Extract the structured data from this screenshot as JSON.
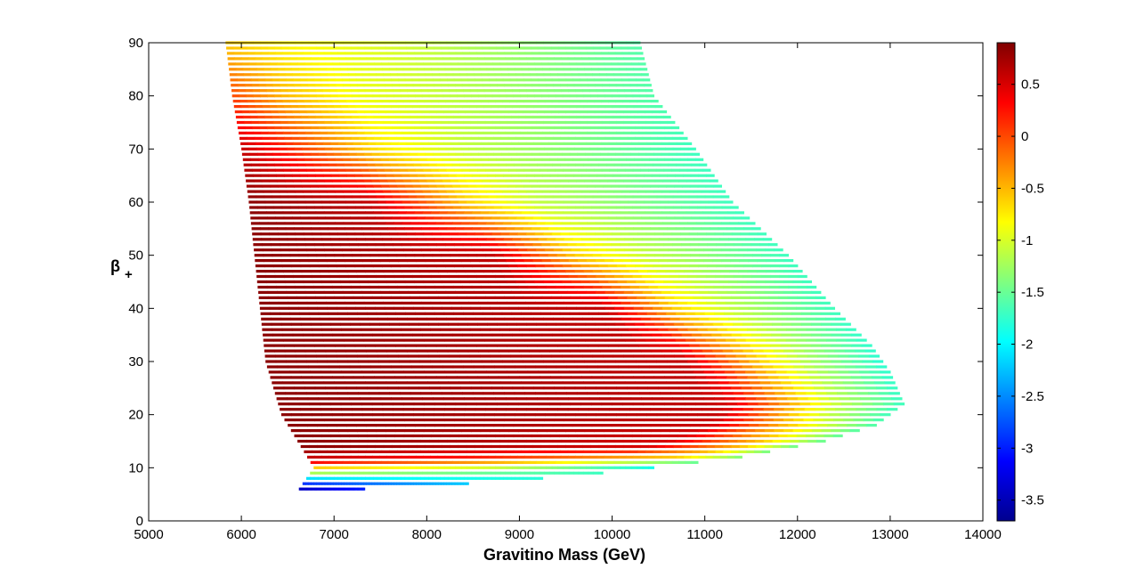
{
  "chart_data": {
    "type": "scatter",
    "title": "",
    "xlabel": "Gravitino Mass (GeV)",
    "ylabel_main": "β",
    "ylabel_sub": "+",
    "xlim": [
      5000,
      14000
    ],
    "ylim": [
      0,
      90
    ],
    "xticks": [
      5000,
      6000,
      7000,
      8000,
      9000,
      10000,
      11000,
      12000,
      13000,
      14000
    ],
    "yticks": [
      0,
      10,
      20,
      30,
      40,
      50,
      60,
      70,
      80,
      90
    ],
    "colorbar": {
      "clim": [
        -3.7,
        0.9
      ],
      "ticks": [
        -3.5,
        -3,
        -2.5,
        -2,
        -1.5,
        -1,
        -0.5,
        0,
        0.5
      ],
      "colormap": "jet"
    },
    "region": {
      "y_step": 1,
      "y_range": [
        6,
        90
      ],
      "left_boundary": [
        {
          "y": 6,
          "x": 6620
        },
        {
          "y": 10,
          "x": 6780
        },
        {
          "y": 20,
          "x": 6430
        },
        {
          "y": 30,
          "x": 6260
        },
        {
          "y": 40,
          "x": 6200
        },
        {
          "y": 50,
          "x": 6140
        },
        {
          "y": 60,
          "x": 6080
        },
        {
          "y": 70,
          "x": 6000
        },
        {
          "y": 80,
          "x": 5900
        },
        {
          "y": 90,
          "x": 5830
        }
      ],
      "right_boundary": [
        {
          "y": 6,
          "x": 7330
        },
        {
          "y": 7,
          "x": 8450
        },
        {
          "y": 8,
          "x": 9250
        },
        {
          "y": 9,
          "x": 9900
        },
        {
          "y": 10,
          "x": 10450
        },
        {
          "y": 12,
          "x": 11400
        },
        {
          "y": 15,
          "x": 12300
        },
        {
          "y": 18,
          "x": 12850
        },
        {
          "y": 22,
          "x": 13150
        },
        {
          "y": 28,
          "x": 13000
        },
        {
          "y": 33,
          "x": 12800
        },
        {
          "y": 40,
          "x": 12400
        },
        {
          "y": 50,
          "x": 11900
        },
        {
          "y": 60,
          "x": 11300
        },
        {
          "y": 70,
          "x": 10900
        },
        {
          "y": 80,
          "x": 10450
        },
        {
          "y": 90,
          "x": 10300
        }
      ],
      "row_colors": [
        {
          "y": 6,
          "values": [
            [
              0,
              -3.4
            ],
            [
              1,
              -3.0
            ]
          ]
        },
        {
          "y": 7,
          "values": [
            [
              0,
              -2.9
            ],
            [
              1,
              -2.2
            ]
          ]
        },
        {
          "y": 8,
          "values": [
            [
              0,
              -2.1
            ],
            [
              1,
              -1.8
            ]
          ]
        },
        {
          "y": 9,
          "values": [
            [
              0,
              -1.2
            ],
            [
              1,
              -1.7
            ]
          ]
        },
        {
          "y": 10,
          "values": [
            [
              0,
              -0.6
            ],
            [
              0.5,
              -1.0
            ],
            [
              1,
              -1.9
            ]
          ]
        },
        {
          "y": 11,
          "values": [
            [
              0,
              0.3
            ],
            [
              0.5,
              -0.5
            ],
            [
              1,
              -1.5
            ]
          ]
        },
        {
          "y": 12,
          "values": [
            [
              0,
              0.6
            ],
            [
              0.4,
              0.2
            ],
            [
              0.85,
              -0.6
            ],
            [
              1,
              -1.4
            ]
          ]
        },
        {
          "y": 14,
          "values": [
            [
              0,
              0.85
            ],
            [
              0.7,
              0.5
            ],
            [
              0.88,
              -0.5
            ],
            [
              1,
              -1.5
            ]
          ]
        },
        {
          "y": 20,
          "values": [
            [
              0,
              0.85
            ],
            [
              0.72,
              0.6
            ],
            [
              0.84,
              -0.6
            ],
            [
              0.9,
              -1.1
            ],
            [
              1,
              -1.7
            ]
          ]
        },
        {
          "y": 30,
          "values": [
            [
              0,
              0.85
            ],
            [
              0.68,
              0.6
            ],
            [
              0.8,
              -0.6
            ],
            [
              0.88,
              -1.2
            ],
            [
              1,
              -1.8
            ]
          ]
        },
        {
          "y": 40,
          "values": [
            [
              0,
              0.85
            ],
            [
              0.6,
              0.6
            ],
            [
              0.72,
              -0.6
            ],
            [
              0.82,
              -1.1
            ],
            [
              1,
              -1.7
            ]
          ]
        },
        {
          "y": 50,
          "values": [
            [
              0,
              0.85
            ],
            [
              0.45,
              0.6
            ],
            [
              0.6,
              -0.6
            ],
            [
              0.74,
              -1.1
            ],
            [
              1,
              -1.7
            ]
          ]
        },
        {
          "y": 60,
          "values": [
            [
              0,
              0.85
            ],
            [
              0.25,
              0.6
            ],
            [
              0.45,
              -0.6
            ],
            [
              0.6,
              -1.1
            ],
            [
              1,
              -1.7
            ]
          ]
        },
        {
          "y": 70,
          "values": [
            [
              0,
              0.6
            ],
            [
              0.12,
              0.1
            ],
            [
              0.3,
              -0.7
            ],
            [
              0.5,
              -1.1
            ],
            [
              1,
              -1.7
            ]
          ]
        },
        {
          "y": 80,
          "values": [
            [
              0,
              0.0
            ],
            [
              0.12,
              -0.5
            ],
            [
              0.3,
              -0.9
            ],
            [
              0.6,
              -1.2
            ],
            [
              1,
              -1.6
            ]
          ]
        },
        {
          "y": 90,
          "values": [
            [
              0,
              -0.6
            ],
            [
              0.15,
              -0.8
            ],
            [
              0.4,
              -1.0
            ],
            [
              0.7,
              -1.3
            ],
            [
              1,
              -1.6
            ]
          ]
        }
      ]
    }
  }
}
